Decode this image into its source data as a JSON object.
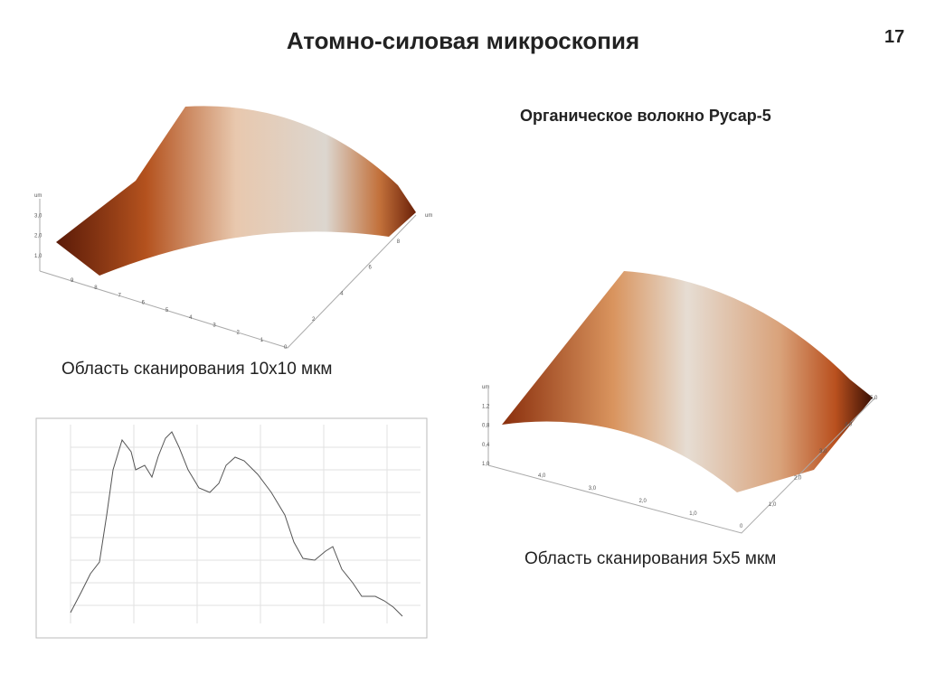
{
  "header": {
    "title": "Атомно-силовая микроскопия",
    "page_number": "17"
  },
  "subtitle": "Органическое волокно Русар-5",
  "left_scan": {
    "caption": "Область сканирования 10x10 мкм",
    "z_labels": [
      "1,0",
      "2,0",
      "3,0",
      "um"
    ],
    "x_labels": [
      "9",
      "8",
      "7",
      "6",
      "5",
      "4",
      "3",
      "2",
      "1",
      "0"
    ],
    "y_labels": [
      "2",
      "4",
      "6",
      "8",
      "um"
    ]
  },
  "right_scan": {
    "caption": "Область сканирования 5x5 мкм",
    "z_labels": [
      "1,0",
      "0,4",
      "0,8",
      "1,2",
      "um"
    ],
    "x_labels": [
      "4,0",
      "3,0",
      "2,0",
      "1,0",
      "0"
    ],
    "y_labels": [
      "1,0",
      "2,0",
      "3,0",
      "4,0",
      "5,0"
    ]
  }
}
